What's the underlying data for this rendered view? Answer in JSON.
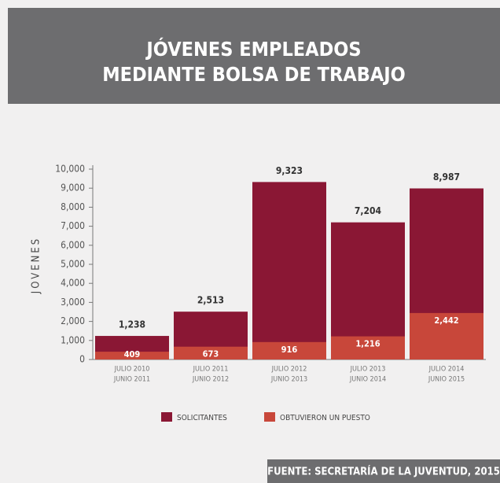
{
  "chart_data": {
    "type": "bar",
    "barmode": "overlay",
    "title": [
      "JÓVENES  EMPLEADOS",
      "MEDIANTE BOLSA DE TRABAJO"
    ],
    "y_label": "JOVENES",
    "categories": [
      [
        "JULIO 2010",
        "JUNIO 2011"
      ],
      [
        "JULIO 2011",
        "JUNIO 2012"
      ],
      [
        "JULIO 2012",
        "JUNIO 2013"
      ],
      [
        "JULIO 2013",
        "JUNIO 2014"
      ],
      [
        "JULIO 2014",
        "JUNIO 2015"
      ]
    ],
    "series": [
      {
        "name": "SOLICITANTES",
        "color": "#8a1734",
        "values": [
          1238,
          2513,
          9323,
          7204,
          8987
        ],
        "value_labels": [
          "1,238",
          "2,513",
          "9,323",
          "7,204",
          "8,987"
        ]
      },
      {
        "name": "OBTUVIERON UN PUESTO",
        "color": "#c8473a",
        "values": [
          409,
          673,
          916,
          1216,
          2442
        ],
        "value_labels": [
          "409",
          "673",
          "916",
          "1,216",
          "2,442"
        ]
      }
    ],
    "ylim": [
      0,
      10000
    ],
    "yticks": [
      0,
      {
        "value": 1000,
        "label": "1,000"
      },
      {
        "value": 2000,
        "label": "2,000"
      },
      {
        "value": 3000,
        "label": "3,000"
      },
      {
        "value": 4000,
        "label": "4,000"
      },
      {
        "value": 5000,
        "label": "5,000"
      },
      {
        "value": 6000,
        "label": "6,000"
      },
      {
        "value": 7000,
        "label": "7,000"
      },
      {
        "value": 8000,
        "label": "8,000"
      },
      {
        "value": 9000,
        "label": "9,000"
      },
      {
        "value": 10000,
        "label": "10,000"
      }
    ],
    "source": "FUENTE: SECRETARÍA DE LA JUVENTUD, 2015"
  }
}
